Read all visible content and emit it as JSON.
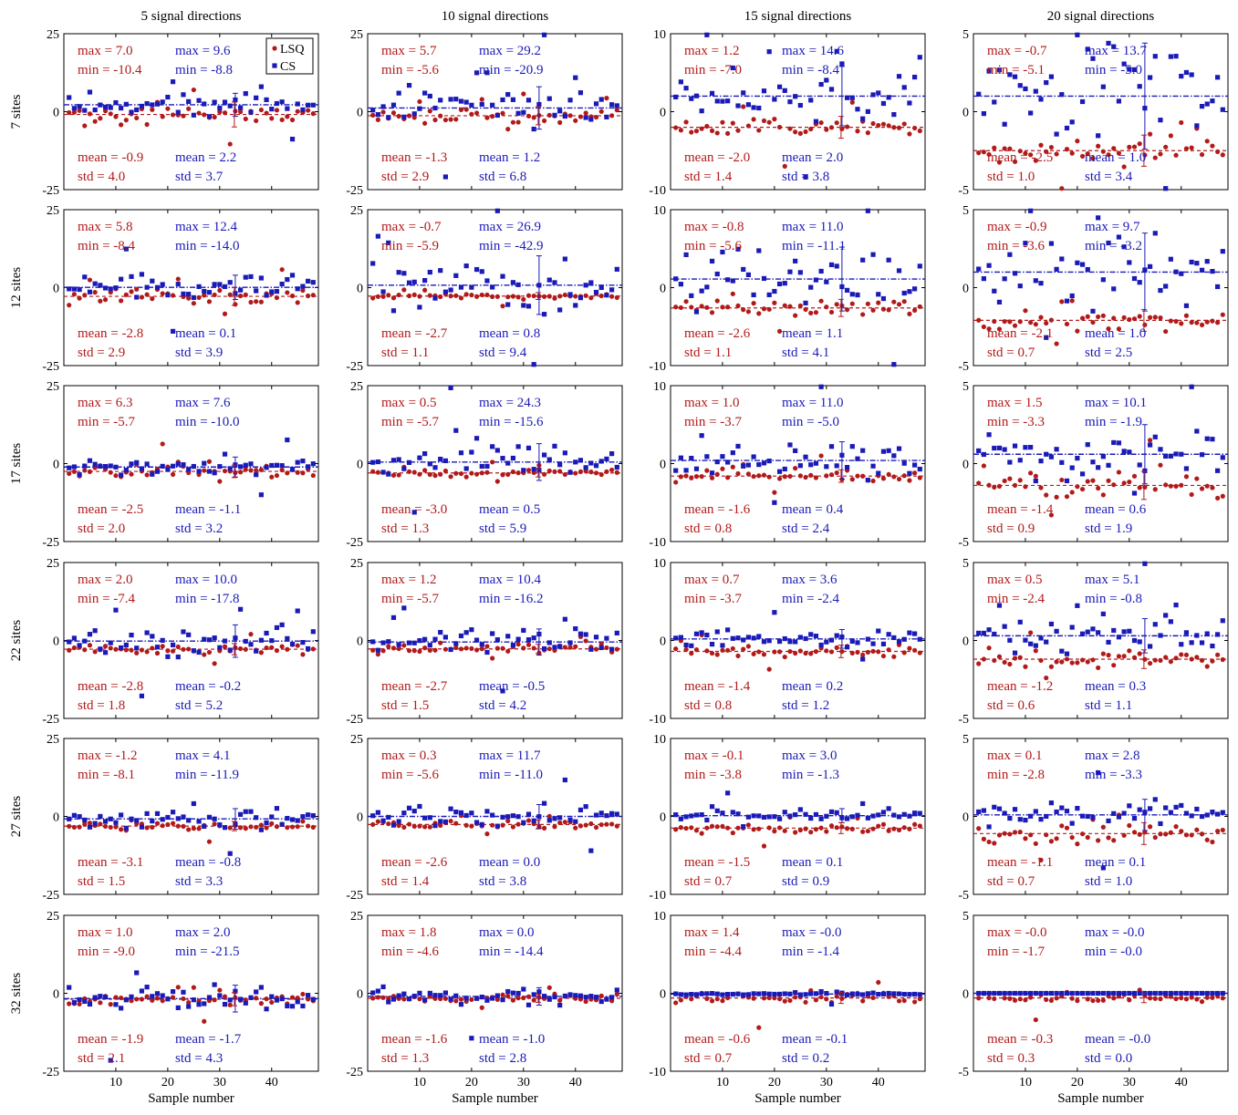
{
  "figure": {
    "x_label": "Sample number",
    "x_ticks": [
      10,
      20,
      30,
      40
    ],
    "x_range": [
      0,
      49
    ],
    "n_samples": 48,
    "legend": {
      "lsq": "LSQ",
      "cs": "CS",
      "position": "top-right of first panel"
    },
    "colors": {
      "lsq": "#b21a1a",
      "cs": "#1a1ab8"
    },
    "columns": [
      {
        "title": "5 signal directions",
        "ylim": [
          -25,
          25
        ],
        "ticks": [
          "-25",
          "0",
          "25"
        ]
      },
      {
        "title": "10 signal directions",
        "ylim": [
          -25,
          25
        ],
        "ticks": [
          "-25",
          "0",
          "25"
        ]
      },
      {
        "title": "15 signal directions",
        "ylim": [
          -10,
          10
        ],
        "ticks": [
          "-10",
          "0",
          "10"
        ]
      },
      {
        "title": "20 signal directions",
        "ylim": [
          -5,
          5
        ],
        "ticks": [
          "-5",
          "0",
          "5"
        ]
      }
    ],
    "rows": [
      "7 sites",
      "12 sites",
      "17 sites",
      "22 sites",
      "27 sites",
      "32 sites"
    ]
  },
  "chart_data": {
    "type": "scatter",
    "series_names": [
      "LSQ",
      "CS"
    ],
    "panels": [
      [
        {
          "lsq": {
            "max": "7.0",
            "min": "-10.4",
            "mean": "-0.9",
            "std": "4.0"
          },
          "cs": {
            "max": "9.6",
            "min": "-8.8",
            "mean": "2.2",
            "std": "3.7"
          }
        },
        {
          "lsq": {
            "max": "5.7",
            "min": "-5.6",
            "mean": "-1.3",
            "std": "2.9"
          },
          "cs": {
            "max": "29.2",
            "min": "-20.9",
            "mean": "1.2",
            "std": "6.8"
          }
        },
        {
          "lsq": {
            "max": "1.2",
            "min": "-7.0",
            "mean": "-2.0",
            "std": "1.4"
          },
          "cs": {
            "max": "14.6",
            "min": "-8.4",
            "mean": "2.0",
            "std": "3.8"
          }
        },
        {
          "lsq": {
            "max": "-0.7",
            "min": "-5.1",
            "mean": "-2.5",
            "std": "1.0"
          },
          "cs": {
            "max": "13.7",
            "min": "-5.0",
            "mean": "1.0",
            "std": "3.4"
          }
        }
      ],
      [
        {
          "lsq": {
            "max": "5.8",
            "min": "-8.4",
            "mean": "-2.8",
            "std": "2.9"
          },
          "cs": {
            "max": "12.4",
            "min": "-14.0",
            "mean": "0.1",
            "std": "3.9"
          }
        },
        {
          "lsq": {
            "max": "-0.7",
            "min": "-5.9",
            "mean": "-2.7",
            "std": "1.1"
          },
          "cs": {
            "max": "26.9",
            "min": "-42.9",
            "mean": "0.8",
            "std": "9.4"
          }
        },
        {
          "lsq": {
            "max": "-0.8",
            "min": "-5.6",
            "mean": "-2.6",
            "std": "1.1"
          },
          "cs": {
            "max": "11.0",
            "min": "-11.1",
            "mean": "1.1",
            "std": "4.1"
          }
        },
        {
          "lsq": {
            "max": "-0.9",
            "min": "-3.6",
            "mean": "-2.1",
            "std": "0.7"
          },
          "cs": {
            "max": "9.7",
            "min": "-3.2",
            "mean": "1.0",
            "std": "2.5"
          }
        }
      ],
      [
        {
          "lsq": {
            "max": "6.3",
            "min": "-5.7",
            "mean": "-2.5",
            "std": "2.0"
          },
          "cs": {
            "max": "7.6",
            "min": "-10.0",
            "mean": "-1.1",
            "std": "3.2"
          }
        },
        {
          "lsq": {
            "max": "0.5",
            "min": "-5.7",
            "mean": "-3.0",
            "std": "1.3"
          },
          "cs": {
            "max": "24.3",
            "min": "-15.6",
            "mean": "0.5",
            "std": "5.9"
          }
        },
        {
          "lsq": {
            "max": "1.0",
            "min": "-3.7",
            "mean": "-1.6",
            "std": "0.8"
          },
          "cs": {
            "max": "11.0",
            "min": "-5.0",
            "mean": "0.4",
            "std": "2.4"
          }
        },
        {
          "lsq": {
            "max": "1.5",
            "min": "-3.3",
            "mean": "-1.4",
            "std": "0.9"
          },
          "cs": {
            "max": "10.1",
            "min": "-1.9",
            "mean": "0.6",
            "std": "1.9"
          }
        }
      ],
      [
        {
          "lsq": {
            "max": "2.0",
            "min": "-7.4",
            "mean": "-2.8",
            "std": "1.8"
          },
          "cs": {
            "max": "10.0",
            "min": "-17.8",
            "mean": "-0.2",
            "std": "5.2"
          }
        },
        {
          "lsq": {
            "max": "1.2",
            "min": "-5.7",
            "mean": "-2.7",
            "std": "1.5"
          },
          "cs": {
            "max": "10.4",
            "min": "-16.2",
            "mean": "-0.5",
            "std": "4.2"
          }
        },
        {
          "lsq": {
            "max": "0.7",
            "min": "-3.7",
            "mean": "-1.4",
            "std": "0.8"
          },
          "cs": {
            "max": "3.6",
            "min": "-2.4",
            "mean": "0.2",
            "std": "1.2"
          }
        },
        {
          "lsq": {
            "max": "0.5",
            "min": "-2.4",
            "mean": "-1.2",
            "std": "0.6"
          },
          "cs": {
            "max": "5.1",
            "min": "-0.8",
            "mean": "0.3",
            "std": "1.1"
          }
        }
      ],
      [
        {
          "lsq": {
            "max": "-1.2",
            "min": "-8.1",
            "mean": "-3.1",
            "std": "1.5"
          },
          "cs": {
            "max": "4.1",
            "min": "-11.9",
            "mean": "-0.8",
            "std": "3.3"
          }
        },
        {
          "lsq": {
            "max": "0.3",
            "min": "-5.6",
            "mean": "-2.6",
            "std": "1.4"
          },
          "cs": {
            "max": "11.7",
            "min": "-11.0",
            "mean": "0.0",
            "std": "3.8"
          }
        },
        {
          "lsq": {
            "max": "-0.1",
            "min": "-3.8",
            "mean": "-1.5",
            "std": "0.7"
          },
          "cs": {
            "max": "3.0",
            "min": "-1.3",
            "mean": "0.1",
            "std": "0.9"
          }
        },
        {
          "lsq": {
            "max": "0.1",
            "min": "-2.8",
            "mean": "-1.1",
            "std": "0.7"
          },
          "cs": {
            "max": "2.8",
            "min": "-3.3",
            "mean": "0.1",
            "std": "1.0"
          }
        }
      ],
      [
        {
          "lsq": {
            "max": "1.0",
            "min": "-9.0",
            "mean": "-1.9",
            "std": "2.1"
          },
          "cs": {
            "max": "2.0",
            "min": "-21.5",
            "mean": "-1.7",
            "std": "4.3"
          }
        },
        {
          "lsq": {
            "max": "1.8",
            "min": "-4.6",
            "mean": "-1.6",
            "std": "1.3"
          },
          "cs": {
            "max": "0.0",
            "min": "-14.4",
            "mean": "-1.0",
            "std": "2.8"
          }
        },
        {
          "lsq": {
            "max": "1.4",
            "min": "-4.4",
            "mean": "-0.6",
            "std": "0.7"
          },
          "cs": {
            "max": "-0.0",
            "min": "-1.4",
            "mean": "-0.1",
            "std": "0.2"
          }
        },
        {
          "lsq": {
            "max": "-0.0",
            "min": "-1.7",
            "mean": "-0.3",
            "std": "0.3"
          },
          "cs": {
            "max": "-0.0",
            "min": "-0.0",
            "mean": "-0.0",
            "std": "0.0"
          }
        }
      ]
    ]
  }
}
